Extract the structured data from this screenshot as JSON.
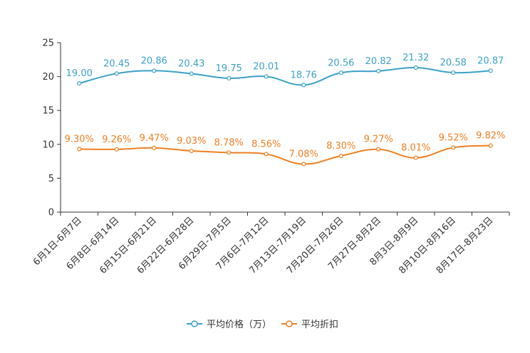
{
  "chart_data": {
    "type": "line",
    "title": "",
    "xlabel": "",
    "ylabel": "",
    "ylim": [
      0,
      25
    ],
    "yticks": [
      0,
      5,
      10,
      15,
      20,
      25
    ],
    "grid": false,
    "legend_position": "bottom-center",
    "categories": [
      "6月1日-6月7日",
      "6月8日-6月14日",
      "6月15日-6月21日",
      "6月22日-6月28日",
      "6月29日-7月5日",
      "7月6日-7月12日",
      "7月13日-7月19日",
      "7月20日-7月26日",
      "7月27日-8月2日",
      "8月3日-8月9日",
      "8月10日-8月16日",
      "8月17日-8月23日"
    ],
    "series": [
      {
        "name": "平均价格（万）",
        "color": "#3ba1c9",
        "values": [
          19.0,
          20.45,
          20.86,
          20.43,
          19.75,
          20.01,
          18.76,
          20.56,
          20.82,
          21.32,
          20.58,
          20.87
        ],
        "labels": [
          "19.00",
          "20.45",
          "20.86",
          "20.43",
          "19.75",
          "20.01",
          "18.76",
          "20.56",
          "20.82",
          "21.32",
          "20.58",
          "20.87"
        ]
      },
      {
        "name": "平均折扣",
        "color": "#f07f21",
        "values": [
          9.3,
          9.26,
          9.47,
          9.03,
          8.78,
          8.56,
          7.08,
          8.3,
          9.27,
          8.01,
          9.52,
          9.82
        ],
        "labels": [
          "9.30%",
          "9.26%",
          "9.47%",
          "9.03%",
          "8.78%",
          "8.56%",
          "7.08%",
          "8.30%",
          "9.27%",
          "8.01%",
          "9.52%",
          "9.82%"
        ]
      }
    ]
  }
}
